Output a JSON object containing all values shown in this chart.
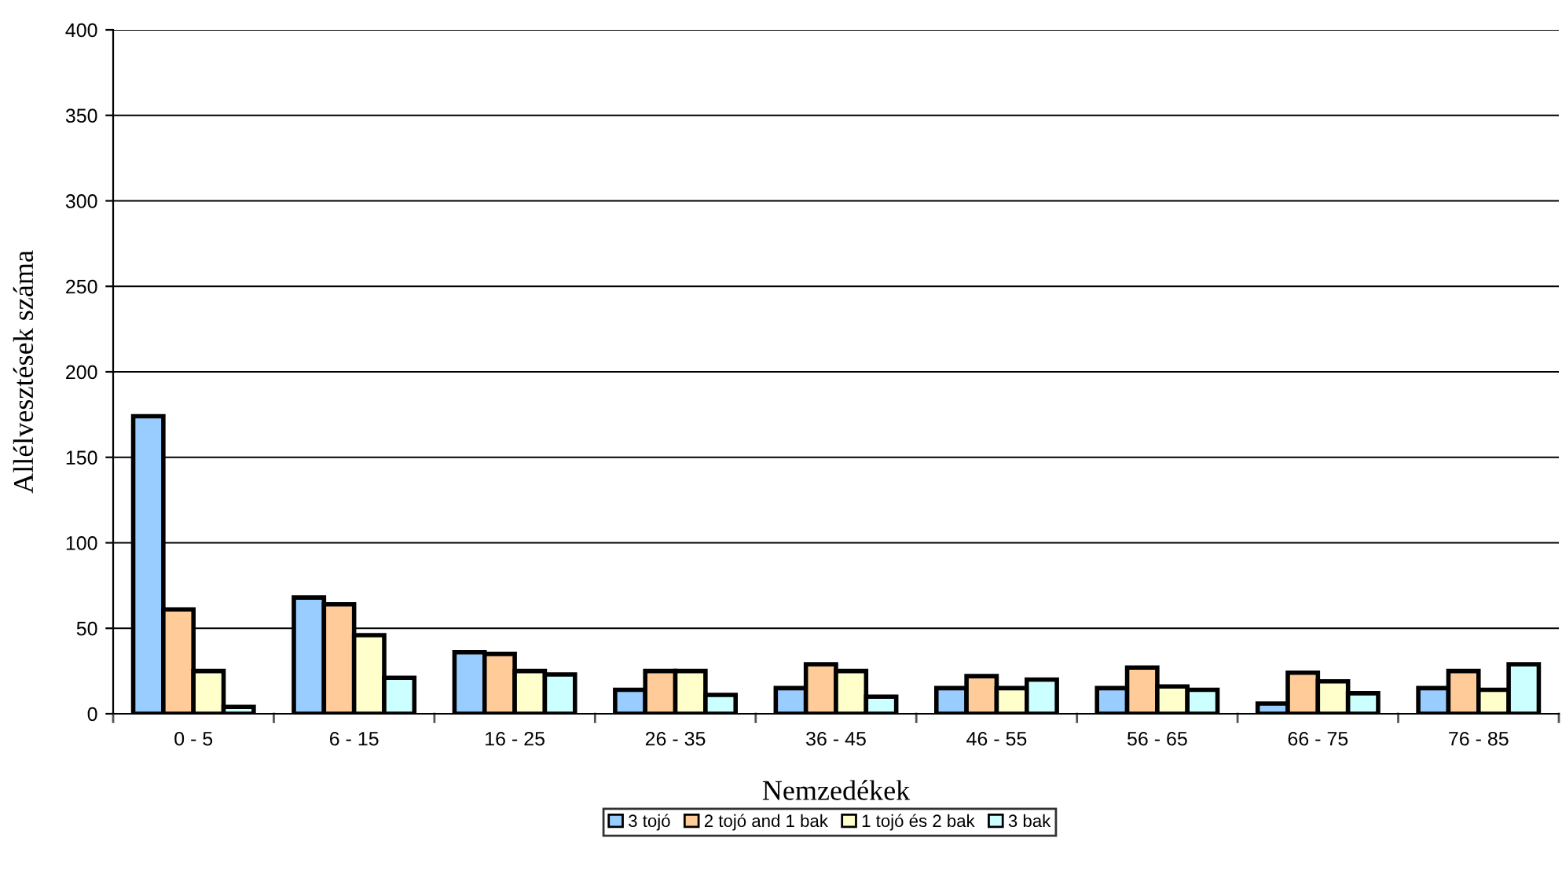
{
  "chart_data": {
    "type": "bar",
    "xlabel": "Nemzedékek",
    "ylabel": "Allélvesztések száma",
    "categories": [
      "0 - 5",
      "6 - 15",
      "16 - 25",
      "26 - 35",
      "36 - 45",
      "46 - 55",
      "56 - 65",
      "66 - 75",
      "76 - 85"
    ],
    "series": [
      {
        "name": "3 tojó",
        "color": "#99ccff",
        "values": [
          174,
          68,
          36,
          14,
          15,
          15,
          15,
          6,
          15
        ]
      },
      {
        "name": "2 tojó and 1 bak",
        "color": "#ffcc99",
        "values": [
          61,
          64,
          35,
          25,
          29,
          22,
          27,
          24,
          25
        ]
      },
      {
        "name": "1 tojó és 2 bak",
        "color": "#ffffcc",
        "values": [
          25,
          46,
          25,
          25,
          25,
          15,
          16,
          19,
          14
        ]
      },
      {
        "name": "3 bak",
        "color": "#ccffff",
        "values": [
          4,
          21,
          23,
          11,
          10,
          20,
          14,
          12,
          29
        ]
      }
    ],
    "ylim": [
      0,
      400
    ],
    "yticks": [
      0,
      50,
      100,
      150,
      200,
      250,
      300,
      350,
      400
    ],
    "grid": "y",
    "legend": "bottom"
  }
}
